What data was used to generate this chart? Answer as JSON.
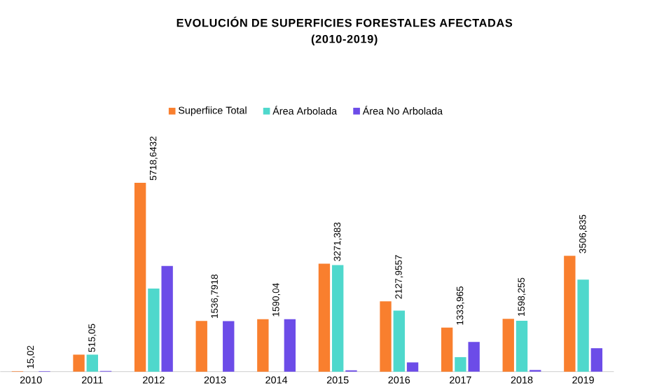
{
  "chart_data": {
    "type": "bar",
    "title": "EVOLUCIÓN DE SUPERFICIES FORESTALES AFECTADAS\n(2010-2019)",
    "categories": [
      "2010",
      "2011",
      "2012",
      "2013",
      "2014",
      "2015",
      "2016",
      "2017",
      "2018",
      "2019"
    ],
    "series": [
      {
        "name": "Superfiice Total",
        "color": "#f97f2e",
        "values": [
          15.02,
          515.05,
          5718.6432,
          1536.7918,
          1590.04,
          3271.383,
          2127.9557,
          1333.965,
          1598.255,
          3506.835
        ],
        "value_labels": [
          "15,02",
          "515,05",
          "5718,6432",
          "1536,7918",
          "1590,04",
          "3271,383",
          "2127,9557",
          "1333,965",
          "1598,255",
          "3506,835"
        ]
      },
      {
        "name": "Área Arbolada",
        "color": "#4fd8cc",
        "values": [
          0,
          515,
          2520,
          0,
          0,
          3230,
          1850,
          440,
          1540,
          2790
        ]
      },
      {
        "name": "Área No Arbolada",
        "color": "#6c4ce8",
        "values": [
          15,
          20,
          3200,
          1530,
          1590,
          40,
          280,
          900,
          50,
          710
        ]
      }
    ],
    "legend": "top",
    "tick_labels": "x"
  }
}
